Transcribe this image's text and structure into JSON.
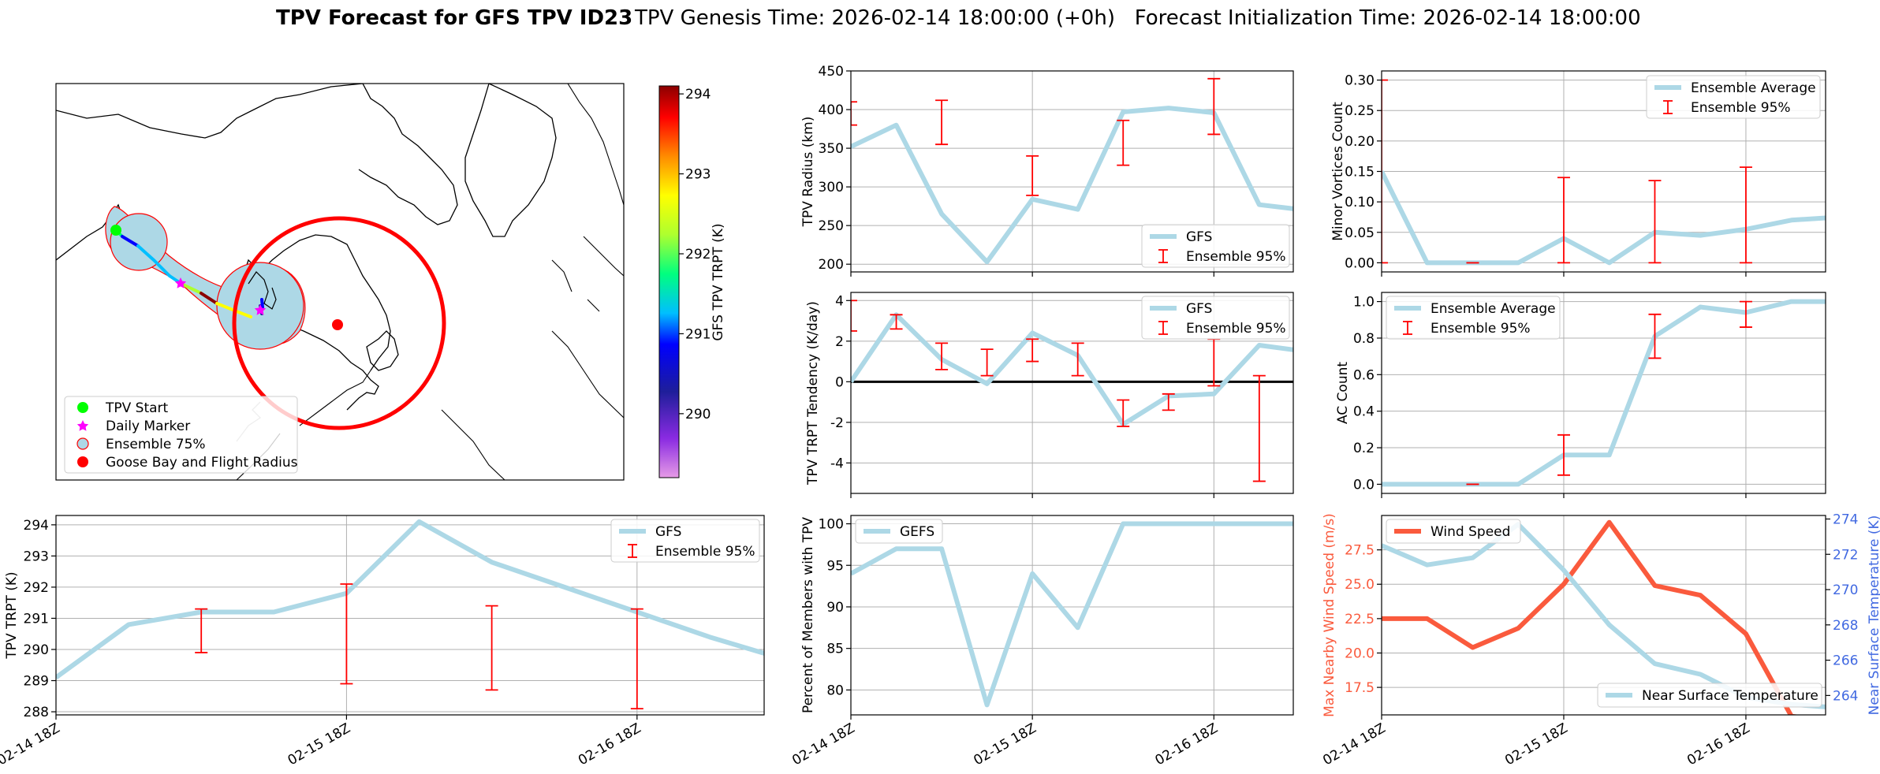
{
  "header": {
    "title_bold": "TPV Forecast for GFS TPV ID23",
    "title_rest": "TPV Genesis Time: 2026-02-14 18:00:00 (+0h)   Forecast Initialization Time: 2026-02-14 18:00:00"
  },
  "colors": {
    "gfs_line": "#add8e6",
    "error_bar": "#ff0000",
    "wind_line": "#fa5a3d",
    "temp_axis": "#4169e1",
    "wind_axis": "#fa5a3d"
  },
  "time_ticks": [
    "02-14 18Z",
    "02-15 18Z",
    "02-16 18Z"
  ],
  "map_panel": {
    "colorbar": {
      "label": "GFS TPV TRPT (K)",
      "ticks": [
        290,
        291,
        292,
        293,
        294
      ],
      "range": [
        289.2,
        294.1
      ]
    },
    "legend": [
      "TPV Start",
      "Daily Marker",
      "Ensemble 75%",
      "Goose Bay and Flight Radius"
    ]
  },
  "chart_data": [
    {
      "id": "trpt",
      "type": "line",
      "ylabel": "TPV TRPT (K)",
      "xlim": [
        0,
        9.75
      ],
      "ylim": [
        287.9,
        294.3
      ],
      "yticks": [
        288,
        289,
        290,
        291,
        292,
        293,
        294
      ],
      "series": [
        {
          "name": "GFS",
          "x": [
            0,
            1,
            2,
            3,
            4,
            5,
            6,
            7,
            8,
            9,
            10
          ],
          "values": [
            289.1,
            290.8,
            291.2,
            291.2,
            291.8,
            294.1,
            292.8,
            292.0,
            291.2,
            290.4,
            289.7
          ]
        }
      ],
      "errorbars": [
        {
          "x": 2,
          "low": 289.9,
          "high": 291.3
        },
        {
          "x": 4,
          "low": 288.9,
          "high": 292.1
        },
        {
          "x": 6,
          "low": 288.7,
          "high": 291.4
        },
        {
          "x": 8,
          "low": 288.1,
          "high": 291.3
        }
      ],
      "legend": [
        "GFS",
        "Ensemble 95%"
      ]
    },
    {
      "id": "radius",
      "type": "line",
      "ylabel": "TPV Radius (km)",
      "xlim": [
        0,
        9.75
      ],
      "ylim": [
        190,
        450
      ],
      "yticks": [
        200,
        250,
        300,
        350,
        400,
        450
      ],
      "series": [
        {
          "name": "GFS",
          "x": [
            0,
            1,
            2,
            3,
            4,
            5,
            6,
            7,
            8,
            9,
            10
          ],
          "values": [
            352,
            380,
            265,
            203,
            284,
            271,
            397,
            402,
            396,
            277,
            270
          ]
        }
      ],
      "errorbars": [
        {
          "x": 0,
          "low": 380,
          "high": 410
        },
        {
          "x": 2,
          "low": 355,
          "high": 412
        },
        {
          "x": 4,
          "low": 289,
          "high": 340
        },
        {
          "x": 6,
          "low": 328,
          "high": 386
        },
        {
          "x": 8,
          "low": 368,
          "high": 440
        }
      ],
      "legend": [
        "GFS",
        "Ensemble 95%"
      ]
    },
    {
      "id": "tendency",
      "type": "line",
      "ylabel": "TPV TRPT Tendency (K/day)",
      "xlim": [
        0,
        9.75
      ],
      "ylim": [
        -5.5,
        4.4
      ],
      "yticks": [
        -4,
        -2,
        0,
        2,
        4
      ],
      "zero_line": true,
      "series": [
        {
          "name": "GFS",
          "x": [
            0,
            1,
            2,
            3,
            4,
            5,
            6,
            7,
            8,
            9,
            10
          ],
          "values": [
            0.0,
            3.3,
            1.1,
            -0.1,
            2.4,
            1.3,
            -2.1,
            -0.7,
            -0.6,
            1.8,
            1.5
          ]
        }
      ],
      "errorbars": [
        {
          "x": 0,
          "low": 2.5,
          "high": 4.0
        },
        {
          "x": 1,
          "low": 2.6,
          "high": 3.3
        },
        {
          "x": 2,
          "low": 0.6,
          "high": 1.9
        },
        {
          "x": 3,
          "low": 0.3,
          "high": 1.6
        },
        {
          "x": 4,
          "low": 1.0,
          "high": 2.1
        },
        {
          "x": 5,
          "low": 0.3,
          "high": 1.9
        },
        {
          "x": 6,
          "low": -2.2,
          "high": -0.9
        },
        {
          "x": 7,
          "low": -1.4,
          "high": -0.6
        },
        {
          "x": 8,
          "low": -0.2,
          "high": 2.1
        },
        {
          "x": 9,
          "low": -4.9,
          "high": 0.3
        }
      ],
      "legend": [
        "GFS",
        "Ensemble 95%"
      ]
    },
    {
      "id": "members",
      "type": "line",
      "ylabel": "Percent of Members with TPV",
      "xlim": [
        0,
        9.75
      ],
      "ylim": [
        77,
        101
      ],
      "yticks": [
        80,
        85,
        90,
        95,
        100
      ],
      "series": [
        {
          "name": "GEFS",
          "x": [
            0,
            1,
            2,
            3,
            4,
            5,
            6,
            7,
            8,
            9,
            10
          ],
          "values": [
            94,
            97,
            97,
            78.2,
            94,
            87.5,
            100,
            100,
            100,
            100,
            100
          ]
        }
      ],
      "legend": [
        "GEFS"
      ]
    },
    {
      "id": "minor",
      "type": "line",
      "ylabel": "Minor Vortices Count",
      "xlim": [
        0,
        9.75
      ],
      "ylim": [
        -0.015,
        0.315
      ],
      "yticks": [
        0.0,
        0.05,
        0.1,
        0.15,
        0.2,
        0.25,
        0.3
      ],
      "ytick_labels": [
        "0.00",
        "0.05",
        "0.10",
        "0.15",
        "0.20",
        "0.25",
        "0.30"
      ],
      "series": [
        {
          "name": "Ensemble Average",
          "x": [
            0,
            1,
            2,
            3,
            4,
            5,
            6,
            7,
            8,
            9,
            10
          ],
          "values": [
            0.15,
            0.0,
            0.0,
            0.0,
            0.04,
            0.0,
            0.05,
            0.045,
            0.055,
            0.07,
            0.075
          ]
        }
      ],
      "errorbars": [
        {
          "x": 0,
          "low": 0.0,
          "high": 0.3
        },
        {
          "x": 2,
          "low": 0.0,
          "high": 0.0
        },
        {
          "x": 4,
          "low": 0.0,
          "high": 0.14
        },
        {
          "x": 6,
          "low": 0.0,
          "high": 0.135
        },
        {
          "x": 8,
          "low": 0.0,
          "high": 0.157
        }
      ],
      "legend": [
        "Ensemble Average",
        "Ensemble 95%"
      ]
    },
    {
      "id": "ac",
      "type": "line",
      "ylabel": "AC Count",
      "xlim": [
        0,
        9.75
      ],
      "ylim": [
        -0.05,
        1.05
      ],
      "yticks": [
        0.0,
        0.2,
        0.4,
        0.6,
        0.8,
        1.0
      ],
      "ytick_labels": [
        "0.0",
        "0.2",
        "0.4",
        "0.6",
        "0.8",
        "1.0"
      ],
      "series": [
        {
          "name": "Ensemble Average",
          "x": [
            0,
            1,
            2,
            3,
            4,
            5,
            6,
            7,
            8,
            9,
            10
          ],
          "values": [
            0.0,
            0.0,
            0.0,
            0.0,
            0.16,
            0.16,
            0.81,
            0.97,
            0.94,
            1.0,
            1.0
          ]
        }
      ],
      "errorbars": [
        {
          "x": 2,
          "low": 0.0,
          "high": 0.0
        },
        {
          "x": 4,
          "low": 0.05,
          "high": 0.27
        },
        {
          "x": 6,
          "low": 0.69,
          "high": 0.93
        },
        {
          "x": 8,
          "low": 0.86,
          "high": 1.0
        }
      ],
      "legend": [
        "Ensemble Average",
        "Ensemble 95%"
      ]
    },
    {
      "id": "wind",
      "type": "line",
      "ylabel": "Max Nearby Wind Speed (m/s)",
      "ylabel_right": "Near Surface Temperature (K)",
      "xlim": [
        0,
        9.75
      ],
      "ylim": [
        15.5,
        30.0
      ],
      "yticks": [
        17.5,
        20.0,
        22.5,
        25.0,
        27.5
      ],
      "ytick_labels": [
        "17.5",
        "20.0",
        "22.5",
        "25.0",
        "27.5"
      ],
      "ylim_right": [
        262.9,
        274.2
      ],
      "yticks_right": [
        264,
        266,
        268,
        270,
        272,
        274
      ],
      "series": [
        {
          "name": "Wind Speed",
          "axis": "left",
          "x": [
            0,
            1,
            2,
            3,
            4,
            5,
            6,
            7,
            8,
            9,
            10
          ],
          "values": [
            22.5,
            22.5,
            20.4,
            21.8,
            25.0,
            29.5,
            24.9,
            24.2,
            21.4,
            15.4,
            15.0
          ]
        },
        {
          "name": "Near Surface Temperature",
          "axis": "right",
          "x": [
            0,
            1,
            2,
            3,
            4,
            5,
            6,
            7,
            8,
            9,
            10
          ],
          "values": [
            272.5,
            271.4,
            271.8,
            273.7,
            271.1,
            268.0,
            265.8,
            265.2,
            263.9,
            263.5,
            263.3
          ]
        }
      ],
      "legend": [
        "Wind Speed",
        "Near Surface Temperature"
      ]
    }
  ]
}
